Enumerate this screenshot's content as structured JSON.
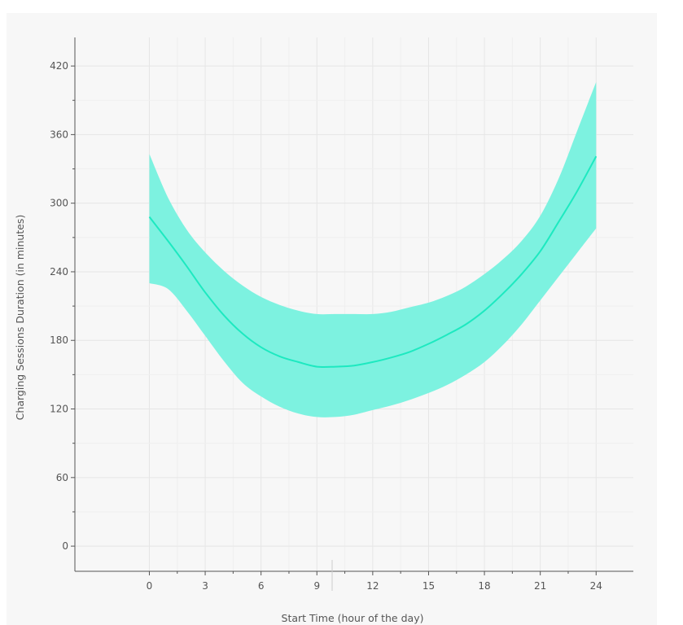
{
  "chart_data": {
    "type": "line",
    "title": "",
    "xlabel": "Start Time (hour of the day)",
    "ylabel": "Charging Sessions Duration (in minutes)",
    "xlim": [
      -4,
      26
    ],
    "ylim": [
      -22,
      445
    ],
    "x_ticks": [
      0,
      3,
      6,
      9,
      12,
      15,
      18,
      21,
      24
    ],
    "y_ticks": [
      0,
      60,
      120,
      180,
      240,
      300,
      360,
      420
    ],
    "grid": true,
    "colors": {
      "line": "#1de9c0",
      "band": "#7df2e0",
      "grid": "#e6e6e6",
      "axis": "#555555"
    },
    "series": [
      {
        "x": [
          0,
          1,
          2,
          3,
          4,
          5,
          6,
          7,
          8,
          9,
          10,
          11,
          12,
          13,
          14,
          15,
          16,
          17,
          18,
          19,
          20,
          21,
          22,
          23,
          24
        ],
        "values": [
          288,
          267,
          245,
          222,
          202,
          186,
          174,
          166,
          161,
          157,
          157,
          158,
          161,
          165,
          170,
          177,
          185,
          194,
          206,
          221,
          238,
          258,
          284,
          311,
          341
        ],
        "band_upper": [
          343,
          305,
          277,
          257,
          241,
          228,
          218,
          211,
          206,
          203,
          203,
          203,
          203,
          205,
          209,
          213,
          219,
          227,
          238,
          251,
          267,
          289,
          322,
          364,
          406
        ],
        "band_lower": [
          230,
          225,
          206,
          184,
          162,
          143,
          131,
          122,
          116,
          113,
          113,
          115,
          119,
          123,
          128,
          134,
          141,
          150,
          161,
          176,
          194,
          215,
          236,
          257,
          278
        ]
      }
    ]
  }
}
